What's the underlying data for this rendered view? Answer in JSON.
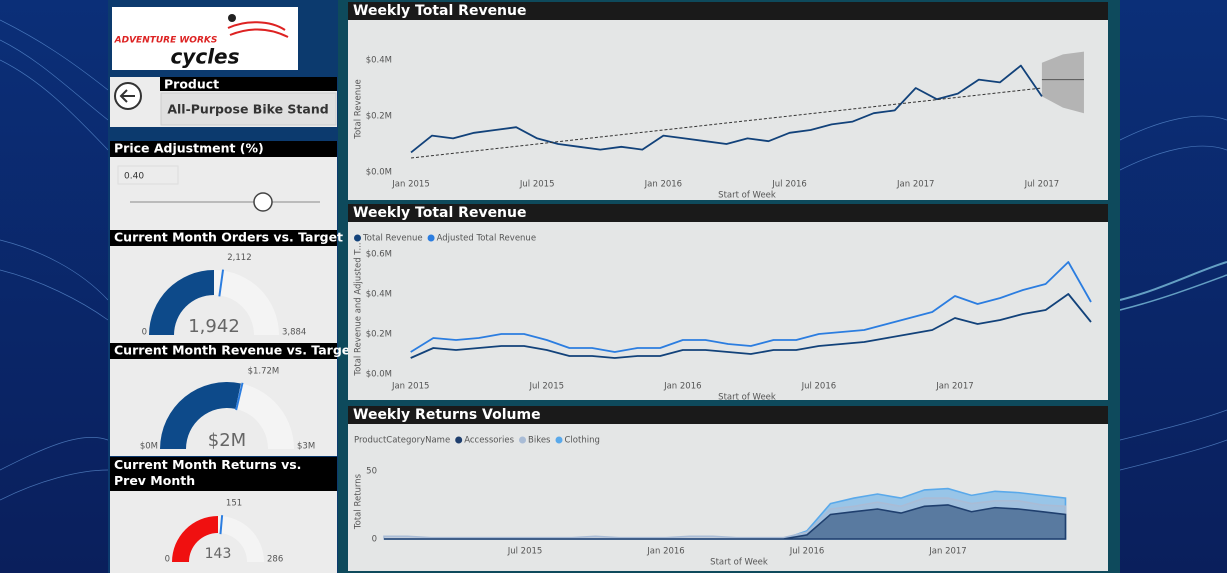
{
  "logo": {
    "line1": "ADVENTURE WORKS",
    "line2": "cycles"
  },
  "product": {
    "label": "Product",
    "value": "All-Purpose Bike Stand"
  },
  "price_adjustment": {
    "label": "Price Adjustment (%)",
    "value": "0.40"
  },
  "gauges": [
    {
      "type": "gauge",
      "title": "Current Month Orders vs. Target",
      "value": 1942,
      "value_label": "1,942",
      "min": 0,
      "max": 3884,
      "max_label": "3,884",
      "target": 2112,
      "target_label": "2,112",
      "color": "#0d4a8a"
    },
    {
      "type": "gauge",
      "title": "Current Month Revenue vs. Target",
      "value": 1.7,
      "value_label": "$2M",
      "min": 0,
      "min_label": "$0M",
      "max": 3,
      "max_label": "$3M",
      "target": 1.72,
      "target_label": "$1.72M",
      "color": "#0d4a8a"
    },
    {
      "type": "gauge",
      "title": "Current Month Returns vs. Prev Month",
      "value": 143,
      "min": 0,
      "max": 286,
      "target": 151,
      "color": "#f01010"
    }
  ],
  "chart_data": [
    {
      "type": "line",
      "title": "Weekly Total Revenue",
      "y_label": "Total Revenue",
      "x_label": "Start of Week",
      "x": [
        "2015-01",
        "2015-02",
        "2015-03",
        "2015-04",
        "2015-05",
        "2015-06",
        "2015-07",
        "2015-08",
        "2015-09",
        "2015-10",
        "2015-11",
        "2015-12",
        "2016-01",
        "2016-02",
        "2016-03",
        "2016-04",
        "2016-05",
        "2016-06",
        "2016-07",
        "2016-08",
        "2016-09",
        "2016-10",
        "2016-11",
        "2016-12",
        "2017-01",
        "2017-02",
        "2017-03",
        "2017-04",
        "2017-05",
        "2017-06",
        "2017-07"
      ],
      "series": [
        {
          "color": "#12427a",
          "values": [
            0.07,
            0.13,
            0.12,
            0.14,
            0.15,
            0.16,
            0.12,
            0.1,
            0.09,
            0.08,
            0.09,
            0.08,
            0.13,
            0.12,
            0.11,
            0.1,
            0.12,
            0.11,
            0.14,
            0.15,
            0.17,
            0.18,
            0.21,
            0.22,
            0.3,
            0.26,
            0.28,
            0.33,
            0.32,
            0.38,
            0.27
          ]
        }
      ],
      "trendline": {
        "x": [
          "2015-01",
          "2017-07"
        ],
        "values": [
          0.05,
          0.3
        ]
      },
      "forecast": {
        "x": [
          "2017-07",
          "2017-08",
          "2017-09"
        ],
        "values": [
          0.33,
          0.33,
          0.33
        ],
        "upper": [
          0.39,
          0.42,
          0.43
        ],
        "lower": [
          0.27,
          0.23,
          0.21
        ]
      },
      "xlim": [
        "2014-12",
        "2017-10"
      ],
      "xticks": [
        {
          "value": "2015-01",
          "label": "Jan 2015"
        },
        {
          "value": "2015-07",
          "label": "Jul 2015"
        },
        {
          "value": "2016-01",
          "label": "Jan 2016"
        },
        {
          "value": "2016-07",
          "label": "Jul 2016"
        },
        {
          "value": "2017-01",
          "label": "Jan 2017"
        },
        {
          "value": "2017-07",
          "label": "Jul 2017"
        }
      ],
      "ylim": [
        0,
        0.45
      ],
      "yticks": [
        {
          "value": 0,
          "label": "$0.0M"
        },
        {
          "value": 0.2,
          "label": "$0.2M"
        },
        {
          "value": 0.4,
          "label": "$0.4M"
        }
      ],
      "grid": false
    },
    {
      "type": "line",
      "title": "Weekly Total Revenue",
      "y_label": "Total Revenue and Adjusted T...",
      "x_label": "Start of Week",
      "x": [
        "2015-01",
        "2015-02",
        "2015-03",
        "2015-04",
        "2015-05",
        "2015-06",
        "2015-07",
        "2015-08",
        "2015-09",
        "2015-10",
        "2015-11",
        "2015-12",
        "2016-01",
        "2016-02",
        "2016-03",
        "2016-04",
        "2016-05",
        "2016-06",
        "2016-07",
        "2016-08",
        "2016-09",
        "2016-10",
        "2016-11",
        "2016-12",
        "2017-01",
        "2017-02",
        "2017-03",
        "2017-04",
        "2017-05",
        "2017-06",
        "2017-07"
      ],
      "series": [
        {
          "name": "Total Revenue",
          "color": "#12427a",
          "values": [
            0.08,
            0.13,
            0.12,
            0.13,
            0.14,
            0.14,
            0.12,
            0.09,
            0.09,
            0.08,
            0.09,
            0.09,
            0.12,
            0.12,
            0.11,
            0.1,
            0.12,
            0.12,
            0.14,
            0.15,
            0.16,
            0.18,
            0.2,
            0.22,
            0.28,
            0.25,
            0.27,
            0.3,
            0.32,
            0.4,
            0.26
          ]
        },
        {
          "name": "Adjusted Total Revenue",
          "color": "#2b7de0",
          "values": [
            0.11,
            0.18,
            0.17,
            0.18,
            0.2,
            0.2,
            0.17,
            0.13,
            0.13,
            0.11,
            0.13,
            0.13,
            0.17,
            0.17,
            0.15,
            0.14,
            0.17,
            0.17,
            0.2,
            0.21,
            0.22,
            0.25,
            0.28,
            0.31,
            0.39,
            0.35,
            0.38,
            0.42,
            0.45,
            0.56,
            0.36
          ]
        }
      ],
      "xlim": [
        "2014-12",
        "2017-07"
      ],
      "xticks": [
        {
          "value": "2015-01",
          "label": "Jan 2015"
        },
        {
          "value": "2015-07",
          "label": "Jul 2015"
        },
        {
          "value": "2016-01",
          "label": "Jan 2016"
        },
        {
          "value": "2016-07",
          "label": "Jul 2016"
        },
        {
          "value": "2017-01",
          "label": "Jan 2017"
        }
      ],
      "ylim": [
        0,
        0.65
      ],
      "yticks": [
        {
          "value": 0,
          "label": "$0.0M"
        },
        {
          "value": 0.2,
          "label": "$0.2M"
        },
        {
          "value": 0.4,
          "label": "$0.4M"
        },
        {
          "value": 0.6,
          "label": "$0.6M"
        }
      ],
      "grid": false
    },
    {
      "type": "area",
      "title": "Weekly Returns Volume",
      "legend_title": "ProductCategoryName",
      "y_label": "Total Returns",
      "x_label": "Start of Week",
      "x": [
        "2015-01",
        "2015-02",
        "2015-03",
        "2015-04",
        "2015-05",
        "2015-06",
        "2015-07",
        "2015-08",
        "2015-09",
        "2015-10",
        "2015-11",
        "2015-12",
        "2016-01",
        "2016-02",
        "2016-03",
        "2016-04",
        "2016-05",
        "2016-06",
        "2016-07",
        "2016-08",
        "2016-09",
        "2016-10",
        "2016-11",
        "2016-12",
        "2017-01",
        "2017-02",
        "2017-03",
        "2017-04",
        "2017-05",
        "2017-06"
      ],
      "series": [
        {
          "name": "Accessories",
          "color": "#1f3f6e",
          "values": [
            0,
            0,
            0,
            0,
            0,
            0,
            0,
            0,
            0,
            0,
            0,
            0,
            0,
            0,
            0,
            0,
            0,
            0,
            3,
            18,
            20,
            22,
            19,
            24,
            25,
            20,
            23,
            22,
            20,
            18
          ]
        },
        {
          "name": "Bikes",
          "color": "#a9bcd6",
          "values": [
            2,
            2,
            1,
            1,
            1,
            1,
            1,
            1,
            1,
            2,
            1,
            1,
            1,
            2,
            2,
            1,
            1,
            1,
            5,
            22,
            24,
            27,
            24,
            30,
            30,
            26,
            28,
            28,
            25,
            24
          ]
        },
        {
          "name": "Clothing",
          "color": "#5aa9ea",
          "values": [
            0,
            0,
            0,
            0,
            0,
            0,
            0,
            0,
            0,
            0,
            0,
            0,
            0,
            0,
            0,
            0,
            0,
            0,
            6,
            26,
            30,
            33,
            30,
            36,
            37,
            32,
            35,
            34,
            32,
            30
          ]
        }
      ],
      "xlim": [
        "2015-01",
        "2017-07"
      ],
      "xticks": [
        {
          "value": "2015-07",
          "label": "Jul 2015"
        },
        {
          "value": "2016-01",
          "label": "Jan 2016"
        },
        {
          "value": "2016-07",
          "label": "Jul 2016"
        },
        {
          "value": "2017-01",
          "label": "Jan 2017"
        }
      ],
      "ylim": [
        0,
        55
      ],
      "yticks": [
        0,
        50
      ],
      "grid": false
    }
  ]
}
